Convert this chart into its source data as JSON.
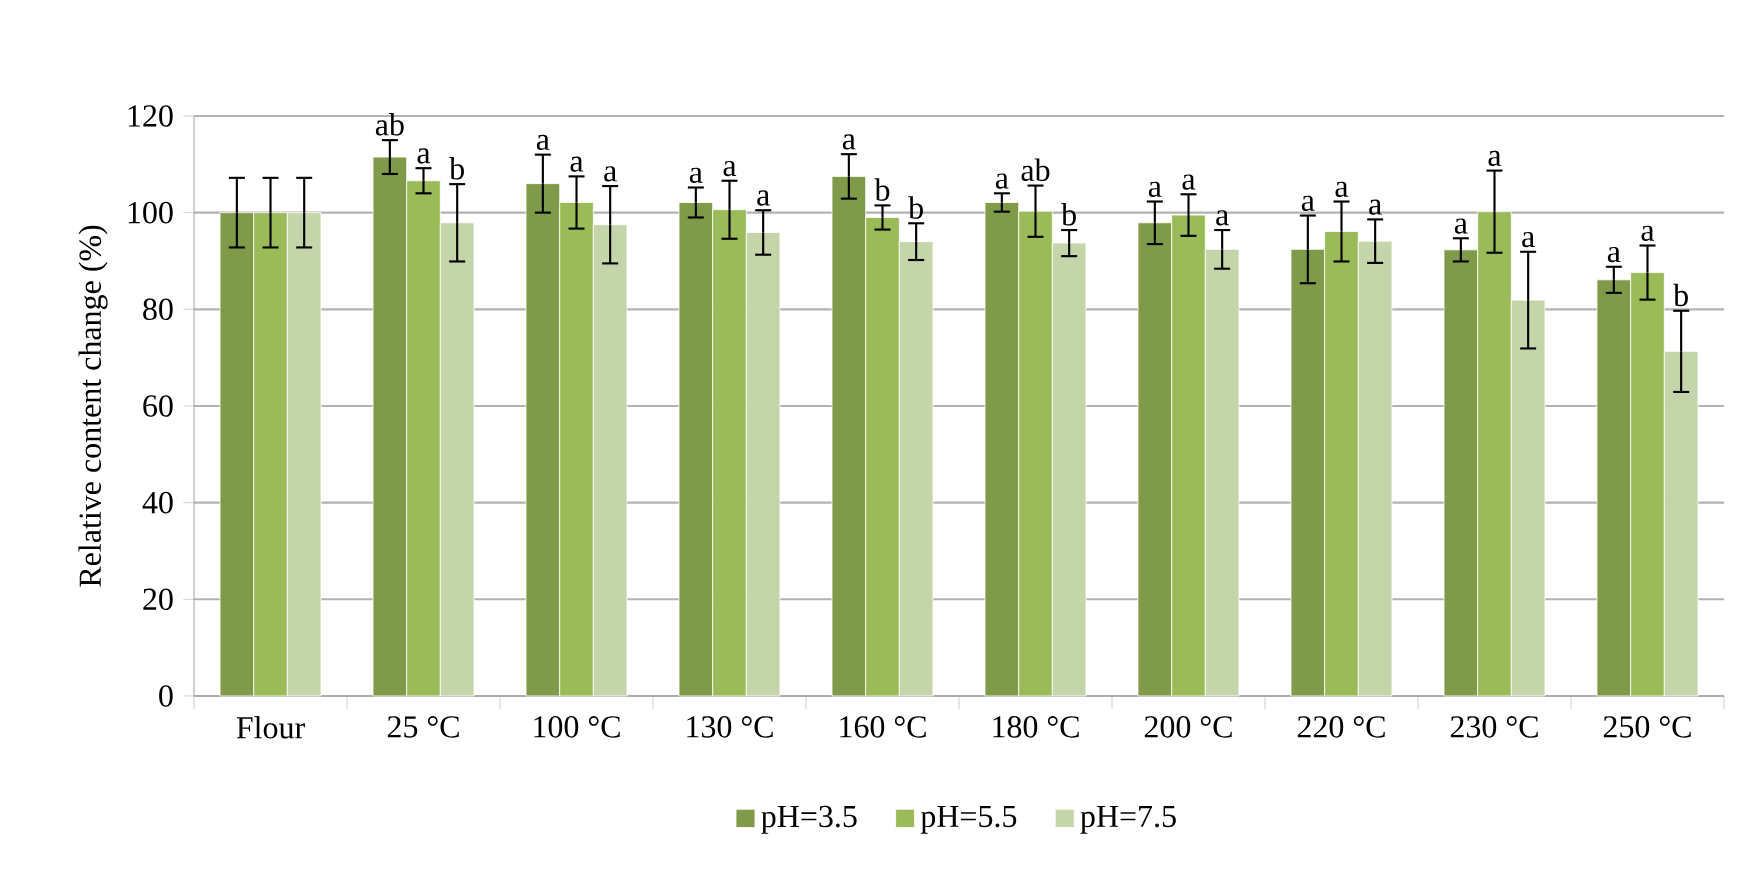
{
  "chart_data": {
    "type": "bar",
    "ylabel": "Relative content change (%)",
    "categories": [
      "Flour",
      "25 °C",
      "100 °C",
      "130 °C",
      "160 °C",
      "180 °C",
      "200 °C",
      "220 °C",
      "230 °C",
      "250 °C"
    ],
    "series": [
      {
        "name": "pH=3.5",
        "color": "#7f9a48",
        "values": [
          100,
          111.5,
          106,
          102.1,
          107.5,
          102.1,
          97.9,
          92.4,
          92.3,
          86.1
        ],
        "errors": [
          7.2,
          3.5,
          6,
          3.1,
          4.6,
          1.9,
          4.4,
          7,
          2.4,
          2.7
        ]
      },
      {
        "name": "pH=5.5",
        "color": "#9bbb59",
        "values": [
          100,
          106.6,
          102.1,
          100.6,
          99,
          100.3,
          99.5,
          96.1,
          100.2,
          87.6
        ],
        "errors": [
          7.2,
          2.6,
          5.4,
          6,
          2.5,
          5.3,
          4.3,
          6.2,
          8.5,
          5.6
        ]
      },
      {
        "name": "pH=7.5",
        "color": "#c4d6a9",
        "values": [
          100,
          97.9,
          97.5,
          95.9,
          94,
          93.7,
          92.4,
          94.1,
          81.9,
          71.3
        ],
        "errors": [
          7.2,
          8,
          8,
          4.6,
          3.8,
          2.7,
          4,
          4.5,
          10,
          8.4
        ]
      }
    ],
    "ylim": [
      0,
      120
    ],
    "yticks": [
      0,
      20,
      40,
      60,
      80,
      100,
      120
    ],
    "grid": "y",
    "legend": "bottom",
    "annotations": [
      "ab",
      "a",
      "b",
      "a",
      "a",
      "a",
      "a",
      "a",
      "a",
      "a",
      "b",
      "b",
      "a",
      "ab",
      "b",
      "a",
      "a",
      "a",
      "a",
      "a",
      "a",
      "a",
      "a",
      "a",
      "a",
      "a",
      "b"
    ]
  }
}
